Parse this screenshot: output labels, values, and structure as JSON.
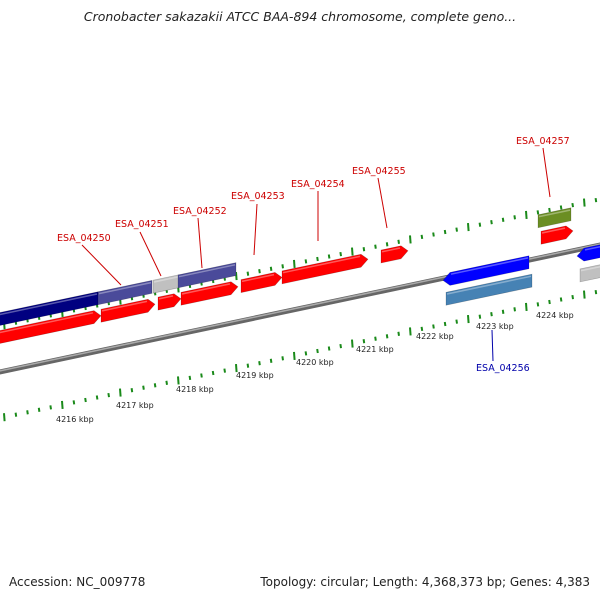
{
  "title": "Cronobacter sakazakii ATCC BAA-894 chromosome, complete geno...",
  "footer": {
    "accession": "Accession: NC_009778",
    "summary": "Topology: circular; Length: 4,368,373 bp; Genes: 4,383"
  },
  "colors": {
    "forward_cds": "#ff0000",
    "reverse_cds": "#0000ff",
    "forward_feature_dark": "#000080",
    "forward_feature_light": "#4a4a9a",
    "forward_feature_grey": "#c0c0c0",
    "reverse_feature_steel": "#4682b4",
    "forward_feature_olive": "#6b8e23",
    "backbone": "#808080",
    "ticks": "#1a8a1a",
    "label_forward": "#cc0000",
    "label_reverse": "#0000aa"
  },
  "scale": {
    "ticks_kbp": [
      "4216 kbp",
      "4217 kbp",
      "4218 kbp",
      "4219 kbp",
      "4220 kbp",
      "4221 kbp",
      "4222 kbp",
      "4223 kbp",
      "4224 kbp"
    ]
  },
  "gene_labels": [
    {
      "text": "ESA_04250",
      "strand": "forward"
    },
    {
      "text": "ESA_04251",
      "strand": "forward"
    },
    {
      "text": "ESA_04252",
      "strand": "forward"
    },
    {
      "text": "ESA_04253",
      "strand": "forward"
    },
    {
      "text": "ESA_04254",
      "strand": "forward"
    },
    {
      "text": "ESA_04255",
      "strand": "forward"
    },
    {
      "text": "ESA_04257",
      "strand": "forward"
    },
    {
      "text": "ESA_04256",
      "strand": "reverse"
    }
  ]
}
